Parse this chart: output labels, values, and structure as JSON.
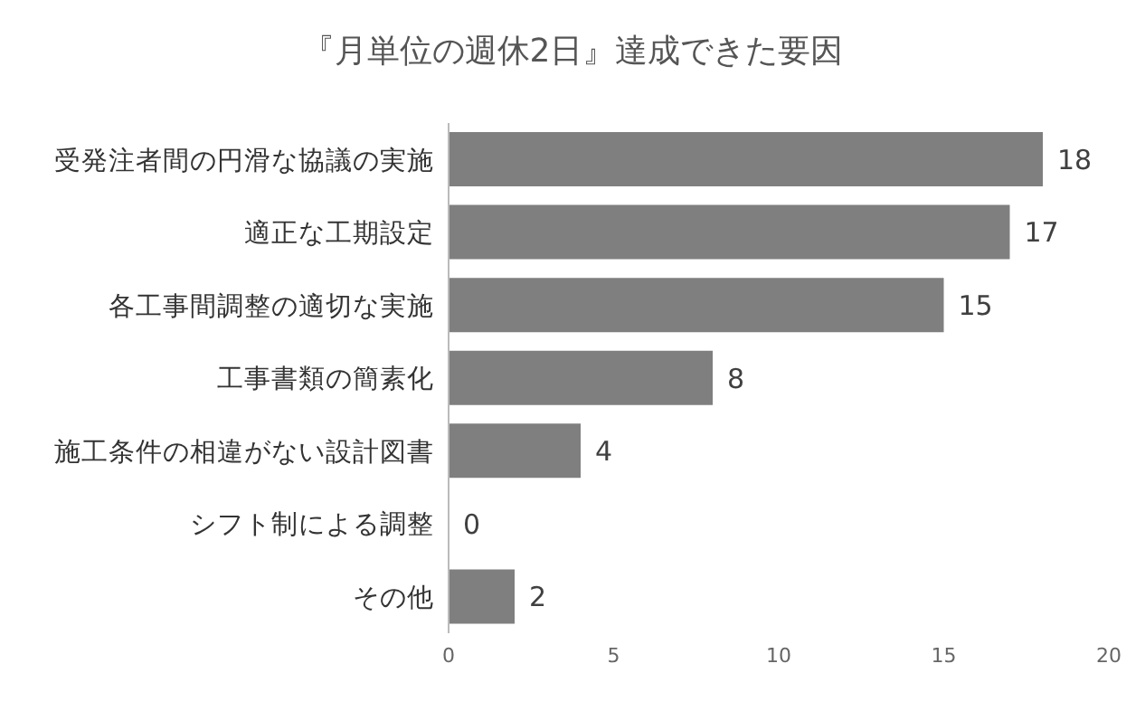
{
  "chart_data": {
    "type": "bar",
    "orientation": "horizontal",
    "title": "『月単位の週休2日』達成できた要因",
    "categories": [
      "受発注者間の円滑な協議の実施",
      "適正な工期設定",
      "各工事間調整の適切な実施",
      "工事書類の簡素化",
      "施工条件の相違がない設計図書",
      "シフト制による調整",
      "その他"
    ],
    "values": [
      18,
      17,
      15,
      8,
      4,
      0,
      2
    ],
    "color": "#7f7f7f",
    "xlim": [
      0,
      20
    ],
    "xticks": [
      0,
      5,
      10,
      15,
      20
    ],
    "data_labels": true,
    "grid": false
  }
}
